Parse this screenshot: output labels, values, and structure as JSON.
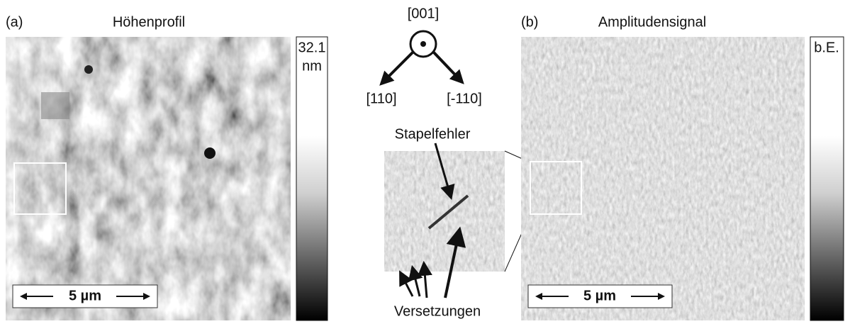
{
  "panels": [
    {
      "label": "(a)",
      "title": "Höhenprofil",
      "colorbar": {
        "max_label": "32.1",
        "unit": "nm"
      },
      "scale_bar": "5 µm"
    },
    {
      "label": "(b)",
      "title": "Amplitudensignal",
      "colorbar": {
        "unit": "b.E."
      },
      "scale_bar": "5 µm"
    }
  ],
  "orientation": {
    "axis": "[001]",
    "left": "[110]",
    "right": "[-110]"
  },
  "inset": {
    "annotations": [
      "Stapelfehler",
      "Versetzungen"
    ]
  }
}
